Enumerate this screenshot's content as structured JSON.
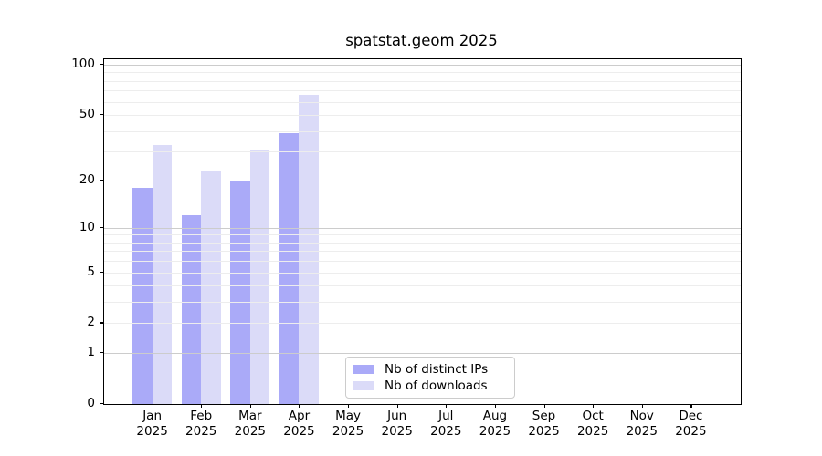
{
  "chart_data": {
    "type": "bar",
    "title": "spatstat.geom 2025",
    "categories": [
      "Jan",
      "Feb",
      "Mar",
      "Apr",
      "May",
      "Jun",
      "Jul",
      "Aug",
      "Sep",
      "Oct",
      "Nov",
      "Dec"
    ],
    "category_year": "2025",
    "series": [
      {
        "name": "Nb of distinct IPs",
        "color": "#aaaaf8",
        "values": [
          18,
          12,
          20,
          39,
          null,
          null,
          null,
          null,
          null,
          null,
          null,
          null
        ]
      },
      {
        "name": "Nb of downloads",
        "color": "#dbdbf8",
        "values": [
          33,
          23,
          31,
          66,
          null,
          null,
          null,
          null,
          null,
          null,
          null,
          null
        ]
      }
    ],
    "yscale": "log1p",
    "ylim": [
      0,
      108
    ],
    "yticks": [
      0,
      1,
      2,
      5,
      10,
      20,
      50,
      100
    ],
    "major_gridlines": [
      1,
      10,
      100
    ],
    "minor_gridlines": [
      2,
      3,
      4,
      5,
      6,
      7,
      8,
      9,
      20,
      30,
      40,
      50,
      60,
      70,
      80,
      90
    ],
    "grid": true,
    "legend_position": "lower center",
    "colors": {
      "spine": "#000000",
      "major_grid": "#cccccc",
      "minor_grid": "#ededed",
      "background": "#ffffff"
    }
  }
}
